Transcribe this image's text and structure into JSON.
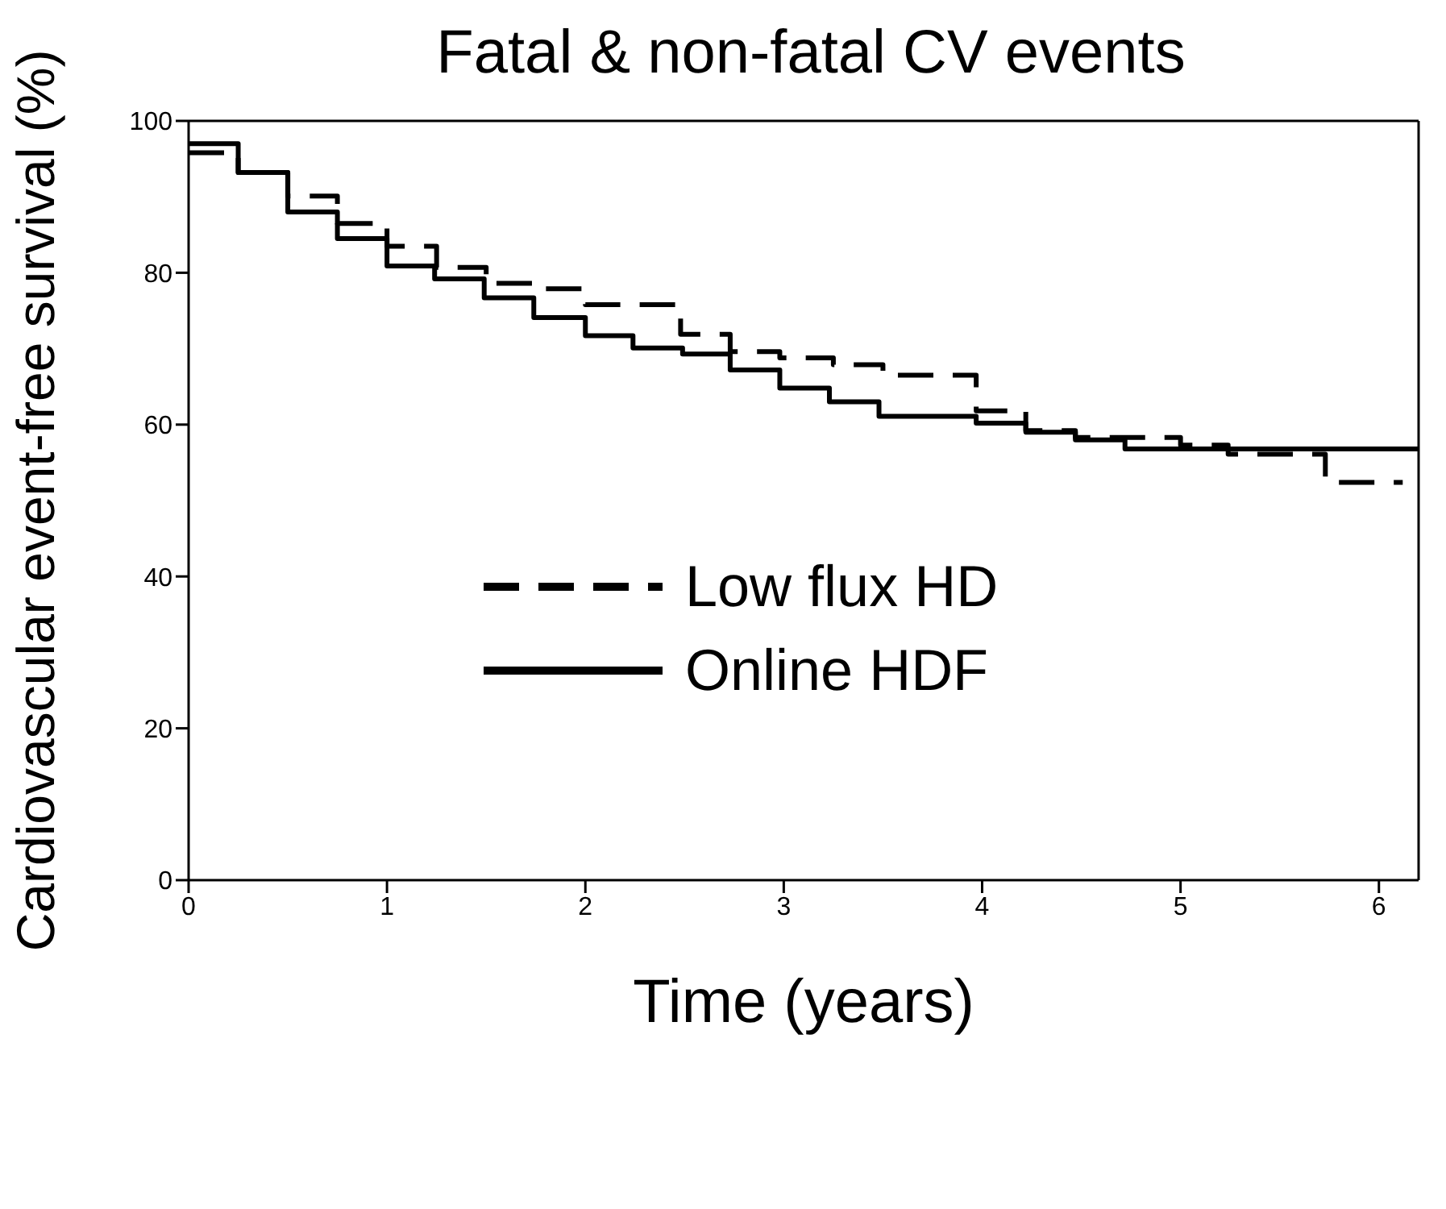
{
  "chart_data": {
    "type": "step",
    "title": "Fatal & non-fatal CV events",
    "xlabel": "Time (years)",
    "ylabel": "Cardiovascular event-free survival (%)",
    "xlim": [
      0,
      6.2
    ],
    "xticks": [
      0,
      1,
      2,
      3,
      4,
      5,
      6
    ],
    "ylim": [
      0,
      100
    ],
    "yticks": [
      0,
      20,
      40,
      60,
      80,
      100
    ],
    "legend": "center",
    "marker": "none",
    "series": [
      {
        "name": "Low flux HD",
        "color": "#000000",
        "line_style": "dashed",
        "x": [
          0,
          0.25,
          0.5,
          0.75,
          1.0,
          1.25,
          1.5,
          1.75,
          2.0,
          2.48,
          2.73,
          2.98,
          3.25,
          3.5,
          3.97,
          4.22,
          4.47,
          5.0,
          5.24,
          5.73,
          6.12
        ],
        "values": [
          95.8,
          93.2,
          90.1,
          86.5,
          83.5,
          80.7,
          78.6,
          77.9,
          75.8,
          71.9,
          69.6,
          68.8,
          67.9,
          66.5,
          61.8,
          59.2,
          58.3,
          57.3,
          56.1,
          52.4,
          52.4
        ]
      },
      {
        "name": "Online HDF",
        "color": "#000000",
        "line_style": "solid",
        "x": [
          0,
          0.25,
          0.5,
          0.75,
          1.0,
          1.24,
          1.49,
          1.74,
          2.0,
          2.24,
          2.49,
          2.73,
          2.98,
          3.23,
          3.48,
          3.97,
          4.22,
          4.47,
          4.72,
          6.2
        ],
        "values": [
          97,
          93.2,
          88.0,
          84.5,
          80.9,
          79.2,
          76.7,
          74.1,
          71.7,
          70.1,
          69.3,
          67.2,
          64.8,
          63.0,
          61.1,
          60.2,
          59.0,
          58.0,
          56.8,
          56.8
        ]
      }
    ]
  }
}
